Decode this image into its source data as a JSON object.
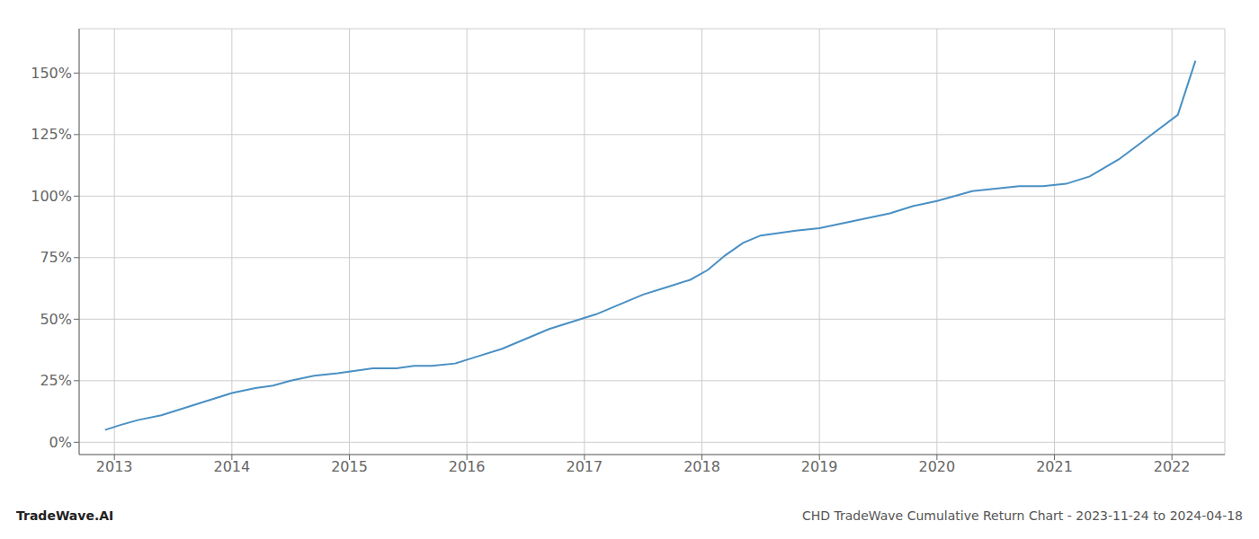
{
  "chart_data": {
    "type": "line",
    "title": "CHD TradeWave Cumulative Return Chart - 2023-11-24 to 2024-04-18",
    "annotations": [
      "TradeWave.AI"
    ],
    "color": "#4a90c4",
    "grid": true,
    "xlim": [
      2012.7,
      2022.45
    ],
    "xticks": [
      2013,
      2014,
      2015,
      2016,
      2017,
      2018,
      2019,
      2020,
      2021,
      2022
    ],
    "ylim": [
      -5,
      168
    ],
    "yticks": [
      {
        "value": 0,
        "label": "0%"
      },
      {
        "value": 25,
        "label": "25%"
      },
      {
        "value": 50,
        "label": "50%"
      },
      {
        "value": 75,
        "label": "75%"
      },
      {
        "value": 100,
        "label": "100%"
      },
      {
        "value": 125,
        "label": "125%"
      },
      {
        "value": 150,
        "label": "150%"
      }
    ],
    "x": [
      2012.92,
      2013.05,
      2013.2,
      2013.4,
      2013.6,
      2013.8,
      2014.0,
      2014.2,
      2014.35,
      2014.5,
      2014.7,
      2014.9,
      2015.05,
      2015.2,
      2015.4,
      2015.55,
      2015.7,
      2015.9,
      2016.1,
      2016.3,
      2016.5,
      2016.7,
      2016.9,
      2017.1,
      2017.3,
      2017.5,
      2017.7,
      2017.9,
      2018.05,
      2018.2,
      2018.35,
      2018.5,
      2018.65,
      2018.8,
      2019.0,
      2019.2,
      2019.4,
      2019.6,
      2019.8,
      2020.0,
      2020.15,
      2020.3,
      2020.5,
      2020.7,
      2020.9,
      2021.1,
      2021.3,
      2021.55,
      2021.8,
      2022.05,
      2022.2
    ],
    "values": [
      5,
      7,
      9,
      11,
      14,
      17,
      20,
      22,
      23,
      25,
      27,
      28,
      29,
      30,
      30,
      31,
      31,
      32,
      35,
      38,
      42,
      46,
      49,
      52,
      56,
      60,
      63,
      66,
      70,
      76,
      81,
      84,
      85,
      86,
      87,
      89,
      91,
      93,
      96,
      98,
      100,
      102,
      103,
      104,
      104,
      105,
      108,
      115,
      124,
      133,
      155
    ]
  }
}
